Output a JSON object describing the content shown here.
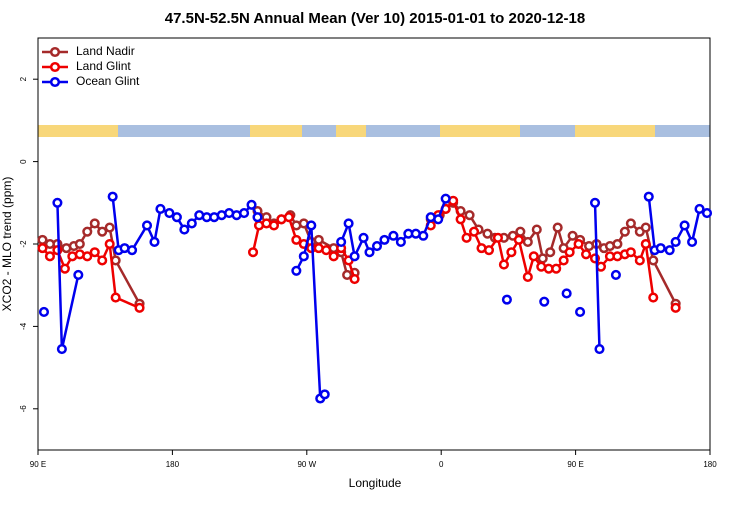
{
  "chart_data": {
    "type": "line",
    "title": "47.5N-52.5N Annual Mean (Ver 10)   2015-01-01 to 2020-12-18",
    "x_label": "Longitude",
    "y_label": "XCO2 - MLO trend (ppm)",
    "xlim": [
      90,
      540
    ],
    "ylim": [
      -7,
      3
    ],
    "xticks": [
      {
        "value": 90,
        "label": "90 E"
      },
      {
        "value": 180,
        "label": "180"
      },
      {
        "value": 270,
        "label": "90 W"
      },
      {
        "value": 360,
        "label": "0"
      },
      {
        "value": 450,
        "label": "90 E"
      },
      {
        "value": 540,
        "label": "180"
      }
    ],
    "yticks": [
      -6,
      -4,
      -2,
      0,
      2
    ],
    "legend": "top-left",
    "series": [
      {
        "name": "Land Nadir",
        "color": "#a52a2a",
        "x": [
          93,
          98,
          103,
          109,
          114,
          118,
          123,
          128,
          133,
          138,
          142,
          158,
          null,
          237,
          243,
          248,
          253,
          259,
          263,
          268,
          273,
          278,
          288,
          293,
          297,
          302,
          null,
          353,
          359,
          363,
          368,
          373,
          379,
          385,
          391,
          396,
          402,
          408,
          413,
          418,
          424,
          428,
          433,
          438,
          442,
          448,
          453,
          459,
          464,
          469,
          473,
          478,
          483,
          487,
          493,
          497,
          502,
          517
        ],
        "values": [
          -1.9,
          -2.0,
          -2.0,
          -2.1,
          -2.05,
          -2.0,
          -1.7,
          -1.5,
          -1.7,
          -1.6,
          -2.4,
          -3.45,
          null,
          -1.2,
          -1.35,
          -1.5,
          -1.4,
          -1.3,
          -1.55,
          -1.5,
          -1.95,
          -1.9,
          -2.1,
          -2.2,
          -2.75,
          -2.7,
          null,
          -1.4,
          -1.3,
          -1.15,
          -1.0,
          -1.2,
          -1.3,
          -1.65,
          -1.75,
          -1.85,
          -1.85,
          -1.8,
          -1.7,
          -1.95,
          -1.65,
          -2.35,
          -2.2,
          -1.6,
          -2.1,
          -1.8,
          -1.9,
          -2.05,
          -2.0,
          -2.1,
          -2.05,
          -2.0,
          -1.7,
          -1.5,
          -1.7,
          -1.6,
          -2.4,
          -3.45
        ]
      },
      {
        "name": "Land Glint",
        "color": "#ee0000",
        "x": [
          93,
          98,
          103,
          108,
          113,
          118,
          123,
          128,
          133,
          138,
          142,
          158,
          null,
          234,
          238,
          243,
          248,
          253,
          258,
          263,
          268,
          273,
          278,
          283,
          288,
          293,
          298,
          302,
          null,
          353,
          358,
          363,
          368,
          373,
          377,
          382,
          387,
          392,
          398,
          402,
          407,
          412,
          418,
          422,
          427,
          432,
          437,
          442,
          446,
          452,
          457,
          463,
          467,
          473,
          478,
          483,
          487,
          493,
          497,
          502,
          null,
          517
        ],
        "values": [
          -2.1,
          -2.3,
          -2.15,
          -2.6,
          -2.3,
          -2.25,
          -2.3,
          -2.2,
          -2.4,
          -2.0,
          -3.3,
          -3.55,
          null,
          -2.2,
          -1.55,
          -1.5,
          -1.55,
          -1.4,
          -1.35,
          -1.9,
          -2.0,
          -2.1,
          -2.1,
          -2.15,
          -2.3,
          -2.1,
          -2.4,
          -2.85,
          null,
          -1.55,
          -1.3,
          -1.15,
          -0.95,
          -1.4,
          -1.85,
          -1.7,
          -2.1,
          -2.15,
          -1.85,
          -2.5,
          -2.2,
          -1.9,
          -2.8,
          -2.3,
          -2.55,
          -2.6,
          -2.6,
          -2.4,
          -2.2,
          -2.0,
          -2.25,
          -2.35,
          -2.55,
          -2.3,
          -2.3,
          -2.25,
          -2.2,
          -2.4,
          -2.0,
          -3.3,
          null,
          -3.55
        ]
      },
      {
        "name": "Ocean Glint",
        "color": "#0000ee",
        "x": [
          94,
          null,
          103,
          106,
          117,
          null,
          140,
          144,
          148,
          153,
          163,
          168,
          172,
          178,
          183,
          188,
          193,
          198,
          203,
          208,
          213,
          218,
          223,
          228,
          233,
          237,
          null,
          263,
          268,
          273,
          279,
          282,
          null,
          293,
          298,
          302,
          308,
          312,
          317,
          322,
          328,
          333,
          338,
          343,
          348,
          353,
          358,
          363,
          null,
          404,
          null,
          429,
          null,
          444,
          null,
          453,
          null,
          463,
          466,
          null,
          477,
          null,
          499,
          503,
          507,
          513,
          517,
          523,
          528,
          533,
          538
        ],
        "values": [
          -3.65,
          null,
          -1.0,
          -4.55,
          -2.75,
          null,
          -0.85,
          -2.15,
          -2.1,
          -2.15,
          -1.55,
          -1.95,
          -1.15,
          -1.25,
          -1.35,
          -1.65,
          -1.5,
          -1.3,
          -1.35,
          -1.35,
          -1.3,
          -1.25,
          -1.3,
          -1.25,
          -1.05,
          -1.35,
          null,
          -2.65,
          -2.3,
          -1.55,
          -5.75,
          -5.65,
          null,
          -1.95,
          -1.5,
          -2.3,
          -1.85,
          -2.2,
          -2.05,
          -1.9,
          -1.8,
          -1.95,
          -1.75,
          -1.75,
          -1.8,
          -1.35,
          -1.4,
          -0.9,
          null,
          -3.35,
          null,
          -3.4,
          null,
          -3.2,
          null,
          -3.65,
          null,
          -1.0,
          -4.55,
          null,
          -2.75,
          null,
          -0.85,
          -2.15,
          -2.1,
          -2.15,
          -1.95,
          -1.55,
          -1.95,
          -1.15,
          -1.25
        ]
      }
    ]
  }
}
